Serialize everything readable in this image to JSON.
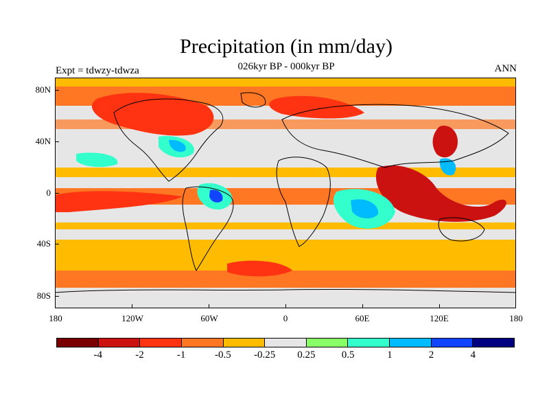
{
  "title": "Precipitation (in mm/day)",
  "subtitle": "026kyr BP - 000kyr BP",
  "experiment_label": "Expt = tdwzy-tdwza",
  "season_label": "ANN",
  "y_axis_labels": [
    "80N",
    "40N",
    "0",
    "40S",
    "80S"
  ],
  "x_axis_labels": [
    "180",
    "120W",
    "60W",
    "0",
    "60E",
    "120E",
    "180"
  ],
  "colorbar": {
    "colors": [
      "#7a0000",
      "#cc1111",
      "#ff3311",
      "#ff7722",
      "#ffbb00",
      "#e6e6e6",
      "#88ff66",
      "#33ffcc",
      "#00bbff",
      "#1144ff",
      "#000080"
    ],
    "labels": [
      "-4",
      "-2",
      "-1",
      "-0.5",
      "-0.25",
      "0.25",
      "0.5",
      "1",
      "2",
      "4"
    ]
  },
  "colors": {
    "strong_dry": "#cc1111",
    "moderate_dry": "#ff7722",
    "weak_dry": "#ffbb00",
    "neutral": "#e6e6e6",
    "weak_wet": "#33ffcc",
    "moderate_wet": "#00bbff",
    "strong_wet": "#1144ff",
    "coast": "#000000"
  }
}
